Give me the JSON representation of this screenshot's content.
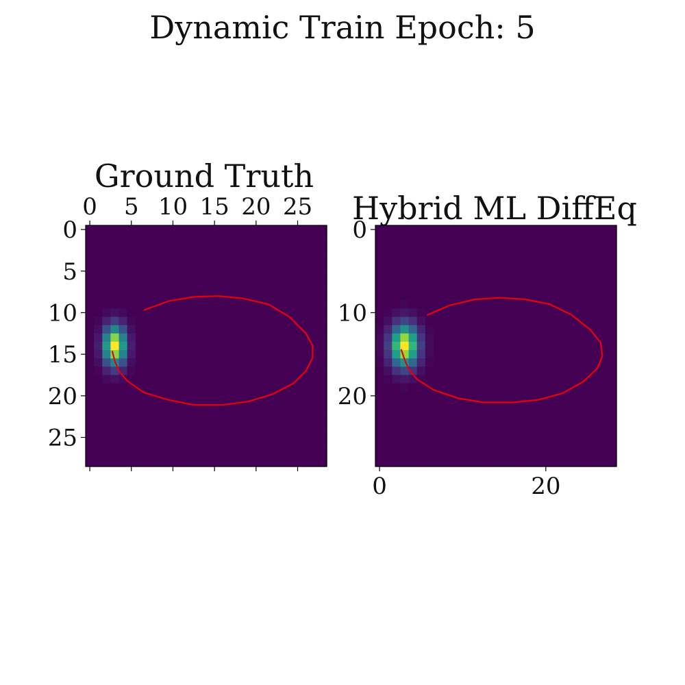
{
  "figure_title": "Dynamic Train Epoch: 5",
  "colors": {
    "background": "#ffffff",
    "trajectory": "#e8000b",
    "cmap_low": "#440154",
    "cmap_high": "#fde725"
  },
  "chart_data": [
    {
      "type": "heatmap",
      "title": "Ground Truth",
      "colormap": "viridis",
      "grid": false,
      "x_axis_position": "top",
      "x_tick_labels": [
        "0",
        "5",
        "10",
        "15",
        "20",
        "25"
      ],
      "x_ticks": [
        0,
        5,
        10,
        15,
        20,
        25
      ],
      "y_tick_labels": [
        "0",
        "5",
        "10",
        "15",
        "20",
        "25"
      ],
      "y_ticks": [
        0,
        5,
        10,
        15,
        20,
        25
      ],
      "bottom_ticks_unlabeled": [
        0,
        5,
        10,
        15,
        20,
        25
      ],
      "xlim": [
        -0.5,
        28.5
      ],
      "ylim": [
        28.5,
        -0.5
      ],
      "blob": {
        "center_x": 3,
        "center_y": 14,
        "sigma_x": 0.9,
        "sigma_y": 1.6,
        "peak": 1.0
      },
      "trajectory": {
        "x": [
          6.5,
          9.5,
          12.5,
          15.5,
          18.5,
          21.5,
          24,
          26,
          26.8,
          26.8,
          26,
          24.5,
          22,
          19,
          16,
          12.5,
          9.5,
          6.5,
          4.5,
          3.5,
          3,
          2.7
        ],
        "y": [
          9.7,
          8.6,
          8.1,
          8.0,
          8.3,
          9.0,
          10.5,
          12.5,
          14.0,
          15.4,
          17.0,
          18.5,
          19.8,
          20.7,
          21.1,
          21.1,
          20.5,
          19.6,
          18.2,
          17.0,
          15.8,
          14.6
        ]
      }
    },
    {
      "type": "heatmap",
      "title": "Hybrid ML DiffEq",
      "colormap": "viridis",
      "grid": false,
      "x_axis_position": "bottom",
      "x_tick_labels": [
        "0",
        "20"
      ],
      "x_ticks": [
        0,
        20
      ],
      "y_tick_labels": [
        "0",
        "10",
        "20"
      ],
      "y_ticks": [
        0,
        10,
        20
      ],
      "xlim": [
        -0.5,
        28.5
      ],
      "ylim": [
        28.5,
        -0.5
      ],
      "blob": {
        "center_x": 3,
        "center_y": 14,
        "sigma_x": 1.1,
        "sigma_y": 1.7,
        "peak": 1.0
      },
      "trajectory": {
        "x": [
          5.7,
          8.5,
          11.5,
          14.5,
          17.5,
          20.5,
          23,
          25.3,
          26.6,
          26.8,
          26.2,
          24.5,
          22,
          19,
          16,
          12.5,
          9.5,
          6.5,
          4.5,
          3.5,
          3,
          2.6
        ],
        "y": [
          10.3,
          9.1,
          8.4,
          8.2,
          8.4,
          9.0,
          10.2,
          12.0,
          13.6,
          15.2,
          16.7,
          18.3,
          19.7,
          20.5,
          20.8,
          20.8,
          20.3,
          19.3,
          18.0,
          16.8,
          15.6,
          14.4
        ]
      }
    }
  ]
}
